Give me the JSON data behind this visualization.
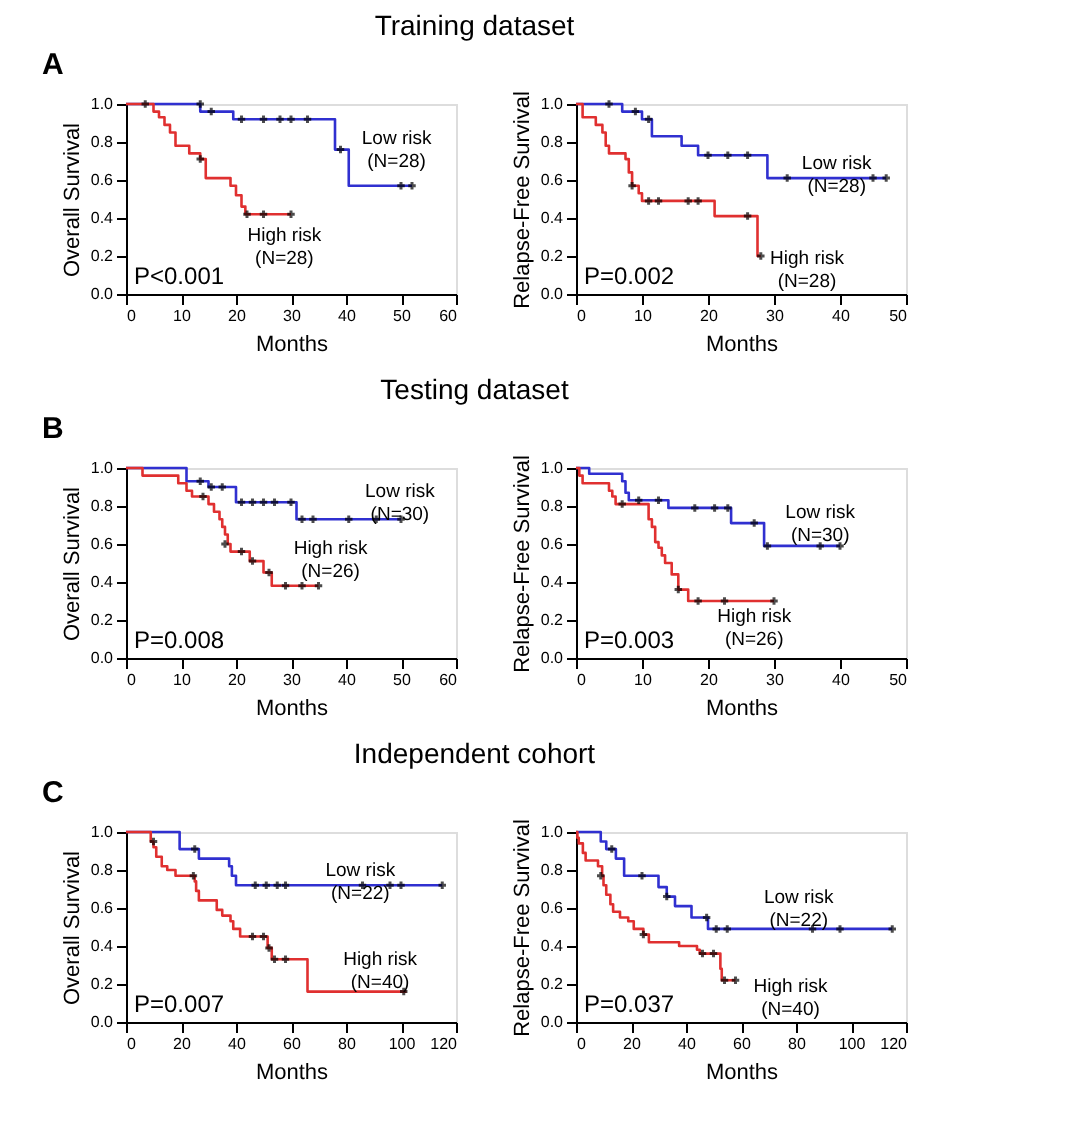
{
  "chart_data": [
    {
      "type": "step",
      "title": "Training dataset",
      "xlabel": "Months",
      "ylabel": "Overall Survival",
      "xlim": [
        0,
        60
      ],
      "xticks": [
        0,
        10,
        20,
        30,
        40,
        50,
        60
      ],
      "ylim": [
        0,
        1
      ],
      "yticks": [
        {
          "value": 0,
          "label": "0.0"
        },
        {
          "value": 0.2,
          "label": "0.2"
        },
        {
          "value": 0.4,
          "label": "0.4"
        },
        {
          "value": 0.6,
          "label": "0.6"
        },
        {
          "value": 0.8,
          "label": "0.8"
        },
        {
          "value": 1,
          "label": "1.0"
        }
      ],
      "grid": false,
      "series": [
        {
          "color": "#3030d0",
          "x": [
            0,
            13.5,
            19.5,
            38,
            40.5,
            52
          ],
          "values": [
            1,
            0.96,
            0.92,
            0.76,
            0.57,
            0.57
          ]
        },
        {
          "color": "#e03030",
          "x": [
            0,
            5,
            6,
            7,
            8,
            9,
            11.5,
            13.5,
            14.5,
            19,
            20,
            21,
            21.7,
            30
          ],
          "values": [
            1,
            0.96,
            0.93,
            0.89,
            0.85,
            0.78,
            0.74,
            0.71,
            0.61,
            0.57,
            0.52,
            0.46,
            0.42,
            0.42
          ]
        },
        {
          "type": "scatter",
          "marker": "cross",
          "color": "#000000",
          "x": [
            3.5,
            13.5,
            15.5,
            21,
            25,
            28,
            30,
            33,
            39,
            50,
            52,
            13.5,
            22,
            25,
            30
          ],
          "values": [
            1,
            1,
            0.96,
            0.92,
            0.92,
            0.92,
            0.92,
            0.92,
            0.76,
            0.57,
            0.57,
            0.71,
            0.42,
            0.42,
            0.42
          ]
        }
      ],
      "annotations": [
        "P<0.001",
        "A",
        "Low risk\n(N=28)",
        "High risk\n(N=28)"
      ]
    },
    {
      "type": "step",
      "xlabel": "Months",
      "ylabel": "Relapse-Free Survival",
      "xlim": [
        0,
        50
      ],
      "xticks": [
        0,
        10,
        20,
        30,
        40,
        50
      ],
      "ylim": [
        0,
        1
      ],
      "yticks": [
        {
          "value": 0,
          "label": "0.0"
        },
        {
          "value": 0.2,
          "label": "0.2"
        },
        {
          "value": 0.4,
          "label": "0.4"
        },
        {
          "value": 0.6,
          "label": "0.6"
        },
        {
          "value": 0.8,
          "label": "0.8"
        },
        {
          "value": 1,
          "label": "1.0"
        }
      ],
      "grid": false,
      "series": [
        {
          "color": "#3030d0",
          "x": [
            0,
            7,
            10,
            11.5,
            16,
            18.5,
            29,
            47
          ],
          "values": [
            1,
            0.96,
            0.92,
            0.83,
            0.78,
            0.73,
            0.61,
            0.61
          ]
        },
        {
          "color": "#e03030",
          "x": [
            0,
            1,
            3,
            4,
            4.5,
            5,
            7.5,
            8,
            8.5,
            9.5,
            10,
            21,
            27.5,
            28
          ],
          "values": [
            1,
            0.93,
            0.89,
            0.85,
            0.78,
            0.74,
            0.71,
            0.64,
            0.57,
            0.53,
            0.49,
            0.41,
            0.2,
            0.2
          ]
        },
        {
          "type": "scatter",
          "marker": "cross",
          "color": "#000000",
          "x": [
            5,
            9,
            11,
            20,
            23,
            26,
            32,
            45,
            47,
            8.5,
            11,
            12.5,
            17,
            18.5,
            26,
            28
          ],
          "values": [
            1,
            0.96,
            0.92,
            0.73,
            0.73,
            0.73,
            0.61,
            0.61,
            0.61,
            0.57,
            0.49,
            0.49,
            0.49,
            0.49,
            0.41,
            0.2
          ]
        }
      ],
      "annotations": [
        "P=0.002",
        "Low risk\n(N=28)",
        "High risk\n(N=28)"
      ]
    },
    {
      "type": "step",
      "title": "Testing dataset",
      "xlabel": "Months",
      "ylabel": "Overall Survival",
      "xlim": [
        0,
        60
      ],
      "xticks": [
        0,
        10,
        20,
        30,
        40,
        50,
        60
      ],
      "ylim": [
        0,
        1
      ],
      "yticks": [
        {
          "value": 0,
          "label": "0.0"
        },
        {
          "value": 0.2,
          "label": "0.2"
        },
        {
          "value": 0.4,
          "label": "0.4"
        },
        {
          "value": 0.6,
          "label": "0.6"
        },
        {
          "value": 0.8,
          "label": "0.8"
        },
        {
          "value": 1,
          "label": "1.0"
        }
      ],
      "grid": false,
      "series": [
        {
          "color": "#3030d0",
          "x": [
            0,
            11,
            15,
            20,
            31,
            50
          ],
          "values": [
            1,
            0.93,
            0.9,
            0.82,
            0.73,
            0.73
          ]
        },
        {
          "color": "#e03030",
          "x": [
            0,
            3,
            9.5,
            11,
            12,
            15,
            16,
            17,
            17.5,
            18,
            18.5,
            19,
            22.5,
            25,
            26.5,
            35
          ],
          "values": [
            1,
            0.96,
            0.92,
            0.88,
            0.85,
            0.81,
            0.77,
            0.73,
            0.69,
            0.65,
            0.6,
            0.56,
            0.51,
            0.45,
            0.38,
            0.38
          ]
        },
        {
          "type": "scatter",
          "marker": "cross",
          "color": "#000000",
          "x": [
            13.5,
            15.5,
            17.5,
            21,
            23,
            25,
            27,
            30,
            32,
            34,
            40.5,
            45.5,
            50,
            14,
            18,
            21,
            23,
            26,
            29,
            32,
            35
          ],
          "values": [
            0.93,
            0.9,
            0.9,
            0.82,
            0.82,
            0.82,
            0.82,
            0.82,
            0.73,
            0.73,
            0.73,
            0.73,
            0.73,
            0.85,
            0.6,
            0.56,
            0.51,
            0.45,
            0.38,
            0.38,
            0.38
          ]
        }
      ],
      "annotations": [
        "P=0.008",
        "B",
        "Low risk\n(N=30)",
        "High risk\n(N=26)"
      ]
    },
    {
      "type": "step",
      "xlabel": "Months",
      "ylabel": "Relapse-Free Survival",
      "xlim": [
        0,
        50
      ],
      "xticks": [
        0,
        10,
        20,
        30,
        40,
        50
      ],
      "ylim": [
        0,
        1
      ],
      "yticks": [
        {
          "value": 0,
          "label": "0.0"
        },
        {
          "value": 0.2,
          "label": "0.2"
        },
        {
          "value": 0.4,
          "label": "0.4"
        },
        {
          "value": 0.6,
          "label": "0.6"
        },
        {
          "value": 0.8,
          "label": "0.8"
        },
        {
          "value": 1,
          "label": "1.0"
        }
      ],
      "grid": false,
      "series": [
        {
          "color": "#3030d0",
          "x": [
            0,
            2,
            7,
            7.5,
            8,
            14,
            23.5,
            28.5,
            40
          ],
          "values": [
            1,
            0.97,
            0.93,
            0.87,
            0.83,
            0.79,
            0.71,
            0.59,
            0.59
          ]
        },
        {
          "color": "#e03030",
          "x": [
            0,
            0.5,
            1,
            5,
            5.5,
            6,
            11,
            11.5,
            12,
            12.5,
            13,
            13.5,
            14.5,
            15.5,
            17,
            30
          ],
          "values": [
            1,
            0.96,
            0.92,
            0.88,
            0.85,
            0.81,
            0.73,
            0.69,
            0.61,
            0.58,
            0.54,
            0.5,
            0.44,
            0.36,
            0.3,
            0.3
          ]
        },
        {
          "type": "scatter",
          "marker": "cross",
          "color": "#000000",
          "x": [
            9.5,
            12.5,
            18,
            21,
            23,
            27,
            29,
            37,
            40,
            7,
            15.5,
            18.5,
            22.5,
            30
          ],
          "values": [
            0.83,
            0.83,
            0.79,
            0.79,
            0.79,
            0.71,
            0.59,
            0.59,
            0.59,
            0.81,
            0.36,
            0.3,
            0.3,
            0.3
          ]
        }
      ],
      "annotations": [
        "P=0.003",
        "Low risk\n(N=30)",
        "High risk\n(N=26)"
      ]
    },
    {
      "type": "step",
      "title": "Independent cohort",
      "xlabel": "Months",
      "ylabel": "Overall Survival",
      "xlim": [
        0,
        120
      ],
      "xticks": [
        0,
        20,
        40,
        60,
        80,
        100,
        120
      ],
      "ylim": [
        0,
        1
      ],
      "yticks": [
        {
          "value": 0,
          "label": "0.0"
        },
        {
          "value": 0.2,
          "label": "0.2"
        },
        {
          "value": 0.4,
          "label": "0.4"
        },
        {
          "value": 0.6,
          "label": "0.6"
        },
        {
          "value": 0.8,
          "label": "0.8"
        },
        {
          "value": 1,
          "label": "1.0"
        }
      ],
      "grid": false,
      "series": [
        {
          "color": "#3030d0",
          "x": [
            0,
            19.5,
            26.5,
            37.5,
            38.5,
            40,
            115
          ],
          "values": [
            1,
            0.91,
            0.86,
            0.82,
            0.77,
            0.72,
            0.72
          ]
        },
        {
          "color": "#e03030",
          "x": [
            0,
            9,
            10,
            11,
            13,
            15,
            18,
            25,
            25.5,
            26.5,
            33,
            35,
            38,
            39,
            41.5,
            51.5,
            53,
            66,
            102
          ],
          "values": [
            1,
            0.95,
            0.92,
            0.87,
            0.82,
            0.8,
            0.77,
            0.74,
            0.69,
            0.64,
            0.59,
            0.56,
            0.53,
            0.49,
            0.45,
            0.39,
            0.33,
            0.16,
            0.16
          ]
        },
        {
          "type": "scatter",
          "marker": "cross",
          "color": "#000000",
          "x": [
            25,
            47,
            51,
            55,
            58,
            86,
            96,
            100,
            115,
            10,
            24.5,
            46,
            50,
            52,
            54,
            58,
            101
          ],
          "values": [
            0.91,
            0.72,
            0.72,
            0.72,
            0.72,
            0.72,
            0.72,
            0.72,
            0.72,
            0.95,
            0.77,
            0.45,
            0.45,
            0.39,
            0.33,
            0.33,
            0.16
          ]
        }
      ],
      "annotations": [
        "P=0.007",
        "C",
        "Low risk\n(N=22)",
        "High risk\n(N=40)"
      ]
    },
    {
      "type": "step",
      "xlabel": "Months",
      "ylabel": "Relapse-Free Survival",
      "xlim": [
        0,
        120
      ],
      "xticks": [
        0,
        20,
        40,
        60,
        80,
        100,
        120
      ],
      "ylim": [
        0,
        1
      ],
      "yticks": [
        {
          "value": 0,
          "label": "0.0"
        },
        {
          "value": 0.2,
          "label": "0.2"
        },
        {
          "value": 0.4,
          "label": "0.4"
        },
        {
          "value": 0.6,
          "label": "0.6"
        },
        {
          "value": 0.8,
          "label": "0.8"
        },
        {
          "value": 1,
          "label": "1.0"
        }
      ],
      "grid": false,
      "series": [
        {
          "color": "#3030d0",
          "x": [
            0,
            9,
            11,
            14.5,
            17.5,
            30,
            33,
            36,
            42,
            48,
            115
          ],
          "values": [
            1,
            0.95,
            0.91,
            0.86,
            0.77,
            0.71,
            0.66,
            0.61,
            0.55,
            0.49,
            0.49
          ]
        },
        {
          "color": "#e03030",
          "x": [
            0,
            0.5,
            1,
            2.5,
            3.5,
            8,
            9.5,
            10,
            11,
            12.5,
            13.5,
            16,
            19,
            21,
            24.5,
            26.5,
            37.5,
            44,
            45,
            52.5,
            53,
            58
          ],
          "values": [
            1,
            0.97,
            0.94,
            0.89,
            0.85,
            0.82,
            0.77,
            0.72,
            0.67,
            0.62,
            0.58,
            0.55,
            0.53,
            0.49,
            0.46,
            0.42,
            0.4,
            0.38,
            0.36,
            0.28,
            0.22,
            0.22
          ]
        },
        {
          "type": "scatter",
          "marker": "cross",
          "color": "#000000",
          "x": [
            13,
            24,
            33,
            47.5,
            51,
            55,
            86,
            96,
            115,
            9,
            24.5,
            46,
            50,
            54,
            58
          ],
          "values": [
            0.91,
            0.77,
            0.66,
            0.55,
            0.49,
            0.49,
            0.49,
            0.49,
            0.49,
            0.77,
            0.46,
            0.36,
            0.36,
            0.22,
            0.22
          ]
        }
      ],
      "annotations": [
        "P=0.037",
        "Low risk\n(N=22)",
        "High risk\n(N=40)"
      ]
    }
  ]
}
